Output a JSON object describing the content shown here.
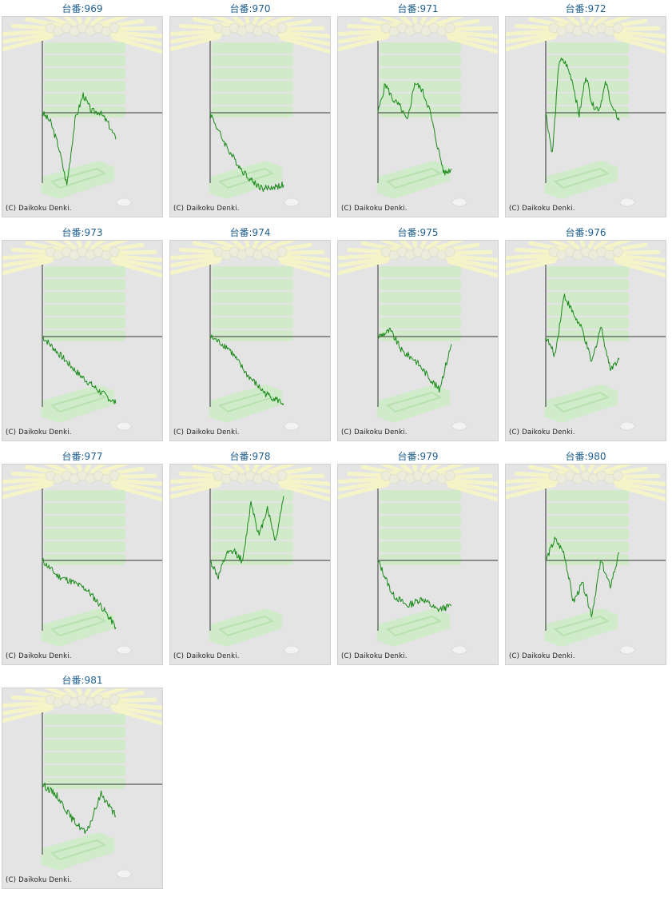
{
  "copyright": "(C) Daikoku Denki.",
  "colors": {
    "title": "#1f5f8f",
    "line": "#1a8a1a",
    "axis": "#333333",
    "panel_bg": "#e4e4e4",
    "watermark": "#c9ecc2",
    "rays": "#f4f4c8"
  },
  "chart_data": [
    {
      "type": "line",
      "title": "台番:969",
      "y": [
        0,
        -0.12,
        -0.45,
        -0.95,
        -0.1,
        0.24,
        0.02,
        0.01,
        -0.13,
        -0.35
      ],
      "ylim": [
        -1.25,
        1.25
      ]
    },
    {
      "type": "line",
      "title": "台番:970",
      "y": [
        0,
        -0.3,
        -0.55,
        -0.75,
        -0.9,
        -1.0,
        -0.98,
        -0.95
      ],
      "ylim": [
        -1.25,
        1.25
      ]
    },
    {
      "type": "line",
      "title": "台番:971",
      "y": [
        0,
        0.38,
        0.18,
        0.08,
        -0.12,
        0.4,
        0.3,
        0.05,
        -0.4,
        -0.8,
        -0.74
      ],
      "ylim": [
        -1.25,
        1.25
      ]
    },
    {
      "type": "line",
      "title": "台番:972",
      "y": [
        0,
        -0.55,
        0.7,
        0.65,
        0.42,
        -0.04,
        0.5,
        0.1,
        0.05,
        0.4,
        0.05,
        -0.1
      ],
      "ylim": [
        -1.25,
        1.25
      ]
    },
    {
      "type": "line",
      "title": "台番:973",
      "y": [
        0,
        -0.25,
        -0.5,
        -0.7,
        -0.88
      ],
      "ylim": [
        -1.25,
        1.25
      ]
    },
    {
      "type": "line",
      "title": "台番:974",
      "y": [
        0,
        -0.15,
        -0.5,
        -0.75,
        -0.88
      ],
      "ylim": [
        -1.25,
        1.25
      ]
    },
    {
      "type": "line",
      "title": "台番:975",
      "y": [
        0,
        0.08,
        -0.2,
        -0.3,
        -0.5,
        -0.7,
        -0.1
      ],
      "ylim": [
        -1.25,
        1.25
      ]
    },
    {
      "type": "line",
      "title": "台番:976",
      "y": [
        0,
        -0.25,
        0.55,
        0.3,
        0.08,
        -0.35,
        0.14,
        -0.42,
        -0.3
      ],
      "ylim": [
        -1.25,
        1.25
      ]
    },
    {
      "type": "line",
      "title": "台番:977",
      "y": [
        0,
        -0.2,
        -0.28,
        -0.38,
        -0.6,
        -0.88
      ],
      "ylim": [
        -1.25,
        1.25
      ]
    },
    {
      "type": "line",
      "title": "台番:978",
      "y": [
        0,
        -0.22,
        0.08,
        0.12,
        -0.02,
        0.78,
        0.32,
        0.7,
        0.25,
        0.85
      ],
      "ylim": [
        -1.25,
        1.25
      ]
    },
    {
      "type": "line",
      "title": "台番:979",
      "y": [
        0,
        -0.45,
        -0.6,
        -0.5,
        -0.65,
        -0.6
      ],
      "ylim": [
        -1.25,
        1.25
      ]
    },
    {
      "type": "line",
      "title": "台番:980",
      "y": [
        0,
        0.28,
        0.1,
        -0.55,
        -0.3,
        -0.72,
        0.0,
        -0.35,
        0.1
      ],
      "ylim": [
        -1.25,
        1.25
      ]
    },
    {
      "type": "line",
      "title": "台番:981",
      "y": [
        0,
        -0.15,
        -0.45,
        -0.65,
        -0.12,
        -0.42
      ],
      "ylim": [
        -1.25,
        1.25
      ]
    }
  ]
}
